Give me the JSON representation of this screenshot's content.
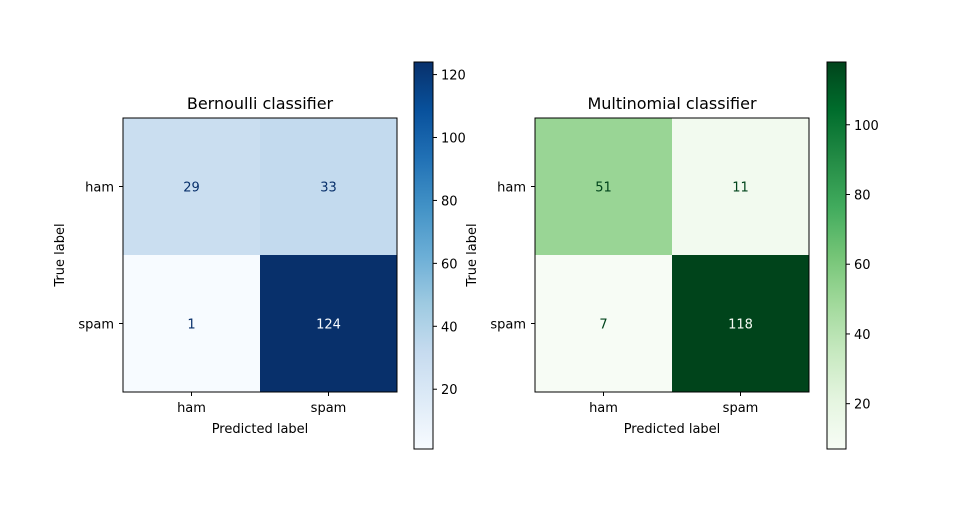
{
  "chart_data": [
    {
      "type": "heatmap",
      "title": "Bernoulli classifier",
      "xlabel": "Predicted label",
      "ylabel": "True label",
      "x_categories": [
        "ham",
        "spam"
      ],
      "y_categories": [
        "ham",
        "spam"
      ],
      "values": [
        [
          29,
          33
        ],
        [
          1,
          124
        ]
      ],
      "colormap": "Blues",
      "color_min_hex": "#f7fbff",
      "color_max_hex": "#08306b",
      "text_dark_hex": "#08306b",
      "text_light_hex": "#f7fbff",
      "colorbar": {
        "range": [
          1,
          124
        ],
        "ticks": [
          20,
          40,
          60,
          80,
          100,
          120
        ]
      }
    },
    {
      "type": "heatmap",
      "title": "Multinomial classifier",
      "xlabel": "Predicted label",
      "ylabel": "True label",
      "x_categories": [
        "ham",
        "spam"
      ],
      "y_categories": [
        "ham",
        "spam"
      ],
      "values": [
        [
          51,
          11
        ],
        [
          7,
          118
        ]
      ],
      "colormap": "Greens",
      "color_min_hex": "#f7fcf5",
      "color_max_hex": "#00441b",
      "text_dark_hex": "#00441b",
      "text_light_hex": "#f7fcf5",
      "colorbar": {
        "range": [
          7,
          118
        ],
        "ticks": [
          20,
          40,
          60,
          80,
          100
        ]
      }
    }
  ]
}
